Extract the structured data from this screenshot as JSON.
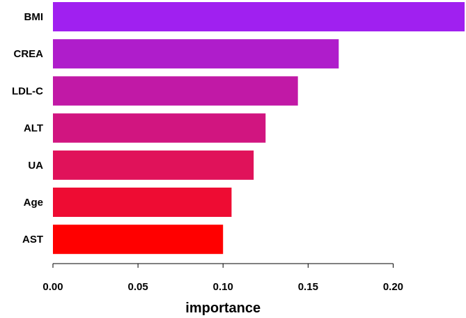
{
  "chart_data": {
    "type": "bar",
    "orientation": "horizontal",
    "categories": [
      "BMI",
      "CREA",
      "LDL-C",
      "ALT",
      "UA",
      "Age",
      "AST"
    ],
    "values": [
      0.242,
      0.168,
      0.144,
      0.125,
      0.118,
      0.105,
      0.1
    ],
    "colors": [
      "#A020F0",
      "#AF1DCB",
      "#C119A6",
      "#D11580",
      "#E0125A",
      "#EE0C33",
      "#FF0000"
    ],
    "xlabel": "importance",
    "xticks": [
      "0.00",
      "0.05",
      "0.10",
      "0.15",
      "0.20"
    ],
    "xlim": [
      0,
      0.242
    ],
    "grid": false
  }
}
